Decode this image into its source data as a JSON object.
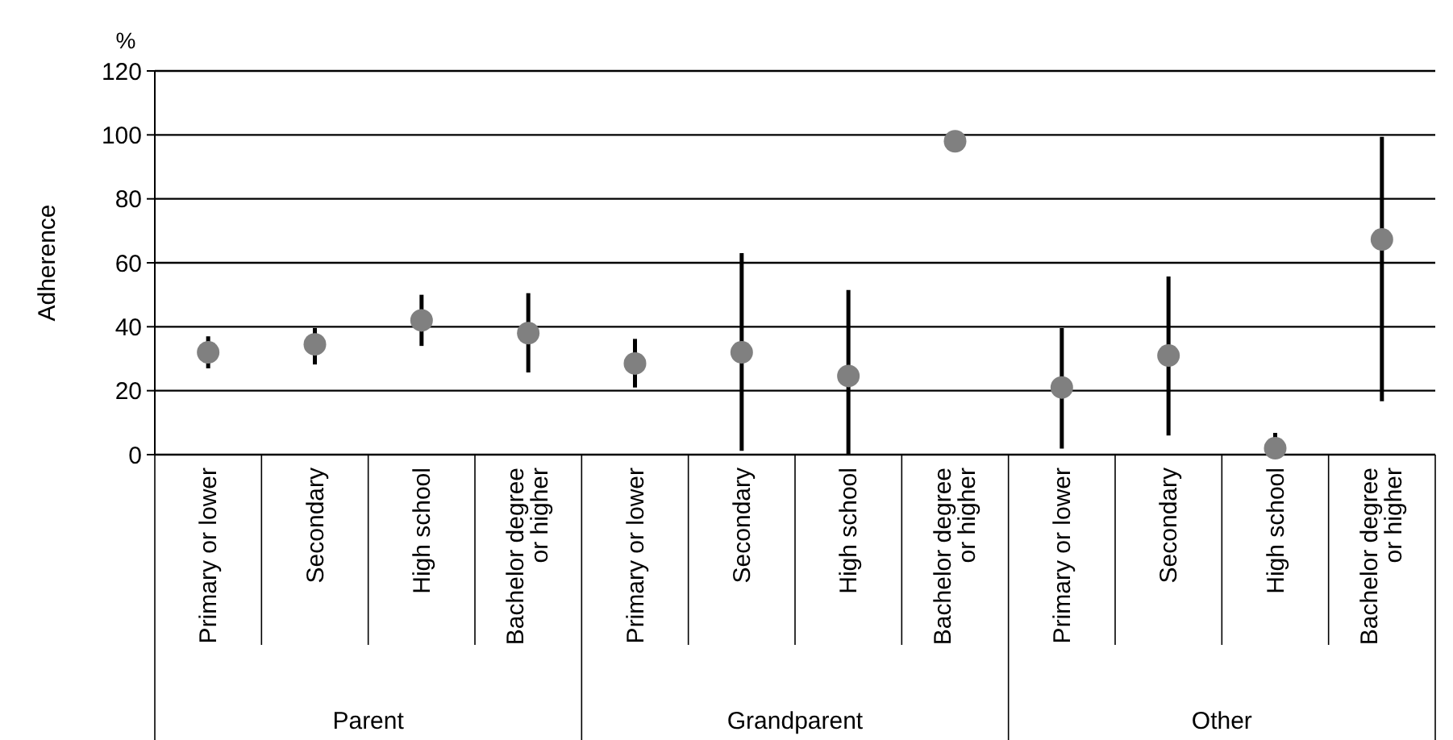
{
  "chart_data": {
    "type": "scatter",
    "ylabel": "Adherence",
    "categories": [
      "Primary or lower",
      "Secondary",
      "High school",
      "Bachelor degree or higher",
      "Primary or lower",
      "Secondary",
      "High school",
      "Bachelor degree or higher",
      "Primary or lower",
      "Secondary",
      "High school",
      "Bachelor degree or higher"
    ],
    "values": [
      32,
      34.5,
      42,
      38,
      28.5,
      32,
      24.6,
      98,
      21,
      31,
      2,
      67.3
    ],
    "errors": [
      [
        27,
        37
      ],
      [
        28.2,
        39.6
      ],
      [
        34,
        50
      ],
      [
        25.7,
        50.5
      ],
      [
        21,
        36.2
      ],
      [
        1.2,
        63
      ],
      [
        0,
        51.5
      ],
      null,
      [
        1.9,
        39.6
      ],
      [
        6,
        55.7
      ],
      [
        2,
        6.8
      ],
      [
        16.7,
        99.4
      ]
    ],
    "color": "#808080",
    "marker": "circle",
    "ylim": [
      0,
      120
    ],
    "yticks": [
      0,
      20,
      40,
      60,
      80,
      100,
      120
    ],
    "grid": "y",
    "annotations": [
      "%",
      "Parent",
      "Grandparent",
      "Other"
    ]
  }
}
